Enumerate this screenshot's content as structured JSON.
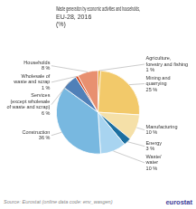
{
  "chart_data": {
    "type": "pie",
    "title": "Waste generation by economic activities and households,\nEU-28, 2016\n(%)",
    "categories": [
      "Agriculture,\nforestry and fishing",
      "Mining and\nquarrying",
      "Manufacturing",
      "Energy",
      "Waste/\nwater",
      "Construction",
      "Services\n(except wholesale\nof waste and scrap)",
      "Wholesale of\nwaste and scrap",
      "Households"
    ],
    "values": [
      1,
      25,
      10,
      3,
      10,
      36,
      6,
      1,
      8
    ],
    "value_labels": [
      "1 %",
      "25 %",
      "10 %",
      "3 %",
      "10 %",
      "36 %",
      "6 %",
      "1 %",
      "8 %"
    ],
    "data_labels": true,
    "colors": [
      "#e8a428",
      "#f2c96a",
      "#f5e0a8",
      "#1c6fa0",
      "#a8d4f0",
      "#78b8e0",
      "#5080b8",
      "#d0401a",
      "#e89070"
    ],
    "annotations": [
      "Source: Eurostat (online data code: env_wasgen)",
      "eurostat"
    ]
  }
}
